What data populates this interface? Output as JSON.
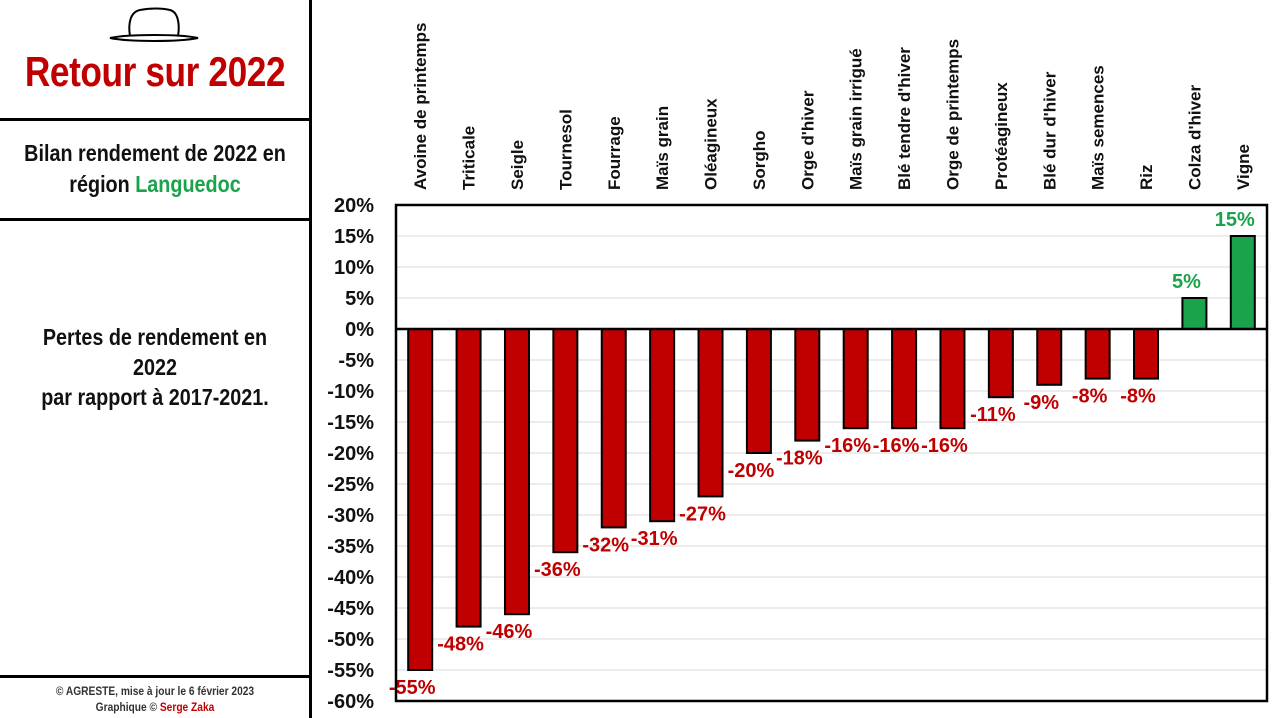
{
  "header": {
    "title": "Retour sur 2022",
    "subtitle_line1": "Bilan rendement de 2022 en",
    "subtitle_region_prefix": "région ",
    "subtitle_region": "Languedoc",
    "description_line1": "Pertes de rendement en 2022",
    "description_line2": "par rapport à 2017-2021."
  },
  "footer": {
    "source": "© AGRESTE, mise à jour le 6 février 2023",
    "credit_prefix": "Graphique © ",
    "credit_author": "Serge Zaka"
  },
  "colors": {
    "negative": "#c00000",
    "positive": "#1aa34a",
    "title": "#c00000"
  },
  "chart_data": {
    "type": "bar",
    "title": "Pertes de rendement en 2022 par rapport à 2017-2021.",
    "xlabel": "",
    "ylabel": "",
    "ylim": [
      -60,
      20
    ],
    "ytick_step": 5,
    "grid": true,
    "categories": [
      "Avoine de printemps",
      "Triticale",
      "Seigle",
      "Tournesol",
      "Fourrage",
      "Maïs grain",
      "Oléagineux",
      "Sorgho",
      "Orge d'hiver",
      "Maïs grain irrigué",
      "Blé tendre d'hiver",
      "Orge de printemps",
      "Protéagineux",
      "Blé dur d'hiver",
      "Maïs semences",
      "Riz",
      "Colza d'hiver",
      "Vigne"
    ],
    "values": [
      -55,
      -48,
      -46,
      -36,
      -32,
      -31,
      -27,
      -20,
      -18,
      -16,
      -16,
      -16,
      -11,
      -9,
      -8,
      -8,
      5,
      15
    ],
    "data_labels": [
      "-55%",
      "-48%",
      "-46%",
      "-36%",
      "-32%",
      "-31%",
      "-27%",
      "-20%",
      "-18%",
      "-16%",
      "-16%",
      "-16%",
      "-11%",
      "-9%",
      "-8%",
      "-8%",
      "5%",
      "15%"
    ],
    "tick_labels": [
      "20%",
      "15%",
      "10%",
      "5%",
      "0%",
      "-5%",
      "-10%",
      "-15%",
      "-20%",
      "-25%",
      "-30%",
      "-35%",
      "-40%",
      "-45%",
      "-50%",
      "-55%",
      "-60%"
    ]
  }
}
